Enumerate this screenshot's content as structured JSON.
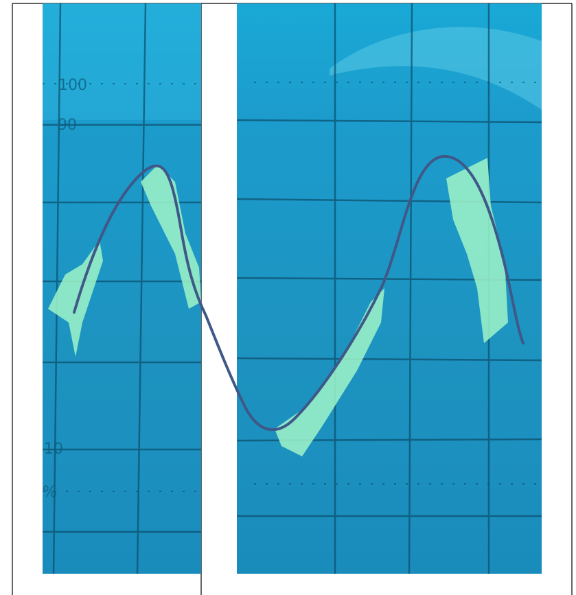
{
  "graticule_labels": [
    "100",
    "90",
    "10",
    "%"
  ]
}
